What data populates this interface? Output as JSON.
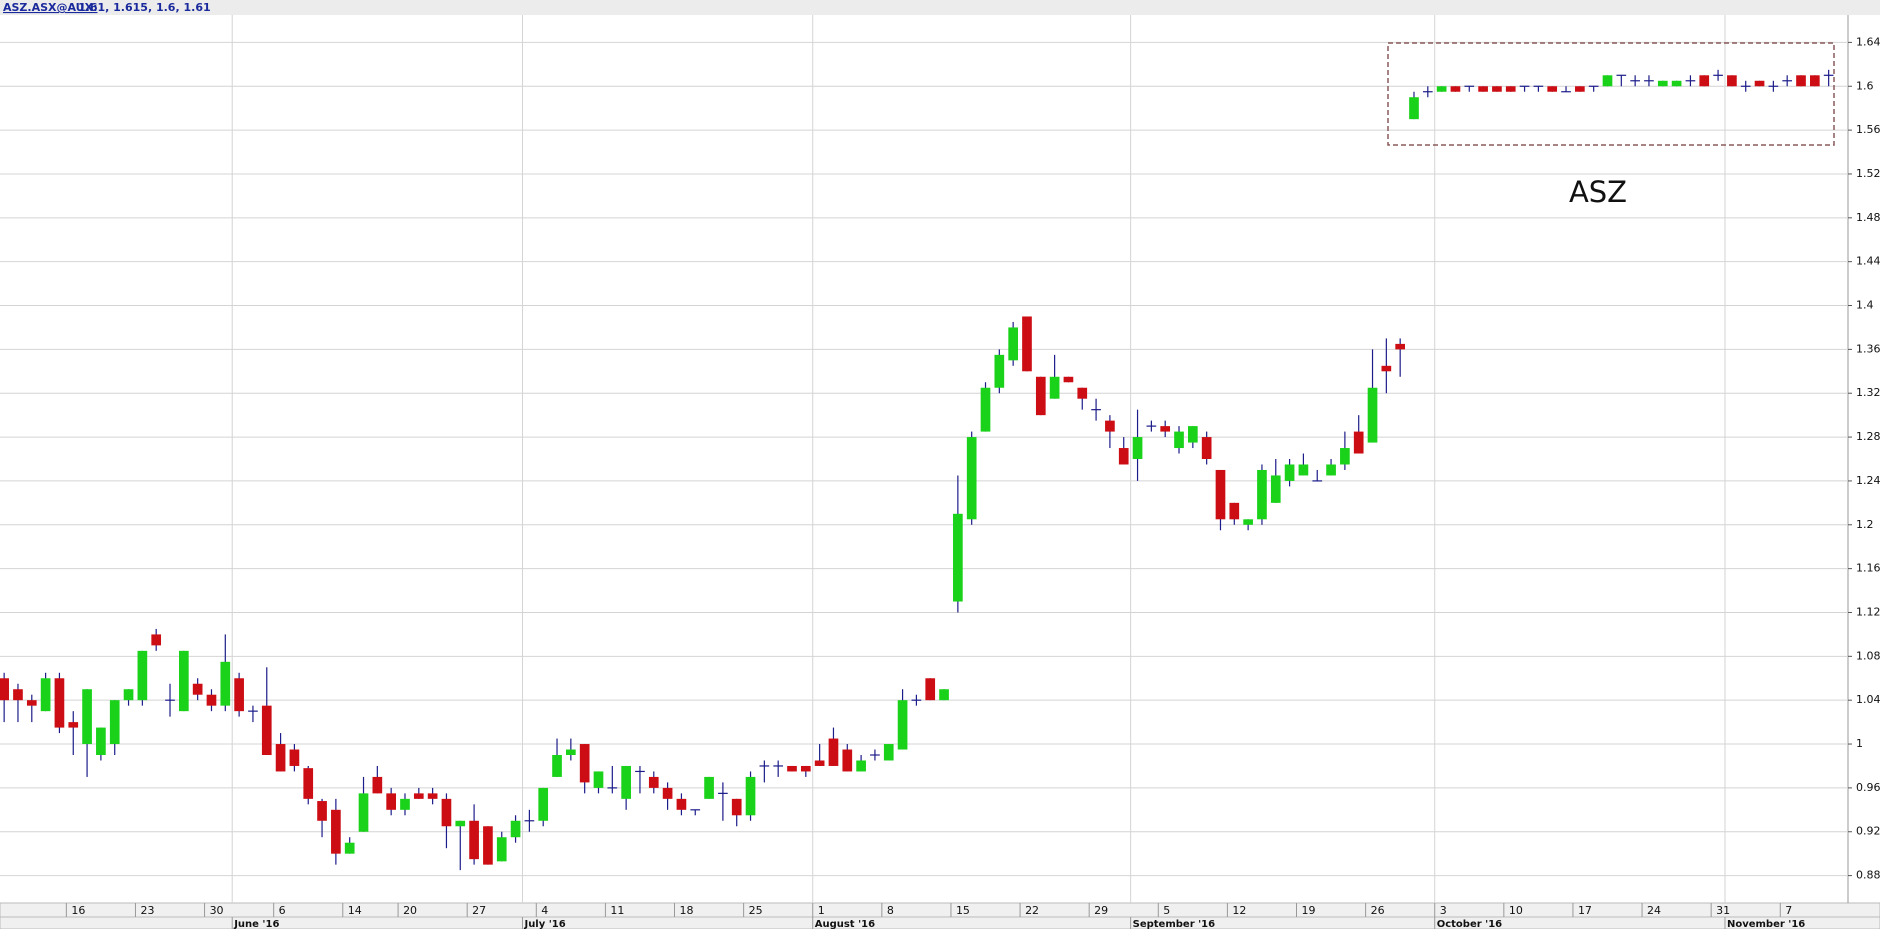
{
  "chart_data": {
    "type": "candlestick",
    "legend_label": "ASZ.ASX@AUX:",
    "annotation": "ASZ",
    "up_color": "#19d219",
    "down_color": "#cc0d14",
    "wick_color": "#1c1c8a",
    "grid": true,
    "ylim": [
      0.855,
      1.665
    ],
    "yticks": [
      0.88,
      0.92,
      0.96,
      1,
      1.04,
      1.08,
      1.12,
      1.16,
      1.2,
      1.24,
      1.28,
      1.32,
      1.36,
      1.4,
      1.44,
      1.48,
      1.52,
      1.56,
      1.6,
      1.64
    ],
    "xticks": [
      {
        "value": "2016-05-16",
        "label": "16"
      },
      {
        "value": "2016-05-23",
        "label": "23"
      },
      {
        "value": "2016-05-30",
        "label": "30"
      },
      {
        "value": "2016-06-06",
        "label": "6"
      },
      {
        "value": "2016-06-14",
        "label": "14"
      },
      {
        "value": "2016-06-20",
        "label": "20"
      },
      {
        "value": "2016-06-27",
        "label": "27"
      },
      {
        "value": "2016-07-04",
        "label": "4"
      },
      {
        "value": "2016-07-11",
        "label": "11"
      },
      {
        "value": "2016-07-18",
        "label": "18"
      },
      {
        "value": "2016-07-25",
        "label": "25"
      },
      {
        "value": "2016-08-01",
        "label": "1"
      },
      {
        "value": "2016-08-08",
        "label": "8"
      },
      {
        "value": "2016-08-15",
        "label": "15"
      },
      {
        "value": "2016-08-22",
        "label": "22"
      },
      {
        "value": "2016-08-29",
        "label": "29"
      },
      {
        "value": "2016-09-05",
        "label": "5"
      },
      {
        "value": "2016-09-12",
        "label": "12"
      },
      {
        "value": "2016-09-19",
        "label": "19"
      },
      {
        "value": "2016-09-26",
        "label": "26"
      },
      {
        "value": "2016-10-03",
        "label": "3"
      },
      {
        "value": "2016-10-10",
        "label": "10"
      },
      {
        "value": "2016-10-17",
        "label": "17"
      },
      {
        "value": "2016-10-24",
        "label": "24"
      },
      {
        "value": "2016-10-31",
        "label": "31"
      },
      {
        "value": "2016-11-07",
        "label": "7"
      }
    ],
    "month_ticks": [
      {
        "value": "2016-06-01",
        "label": "June '16"
      },
      {
        "value": "2016-07-01",
        "label": "July '16"
      },
      {
        "value": "2016-08-01",
        "label": "August '16"
      },
      {
        "value": "2016-09-01",
        "label": "September '16"
      },
      {
        "value": "2016-10-03",
        "label": "October '16"
      },
      {
        "value": "2016-11-01",
        "label": "November '16"
      }
    ],
    "x": [
      "2016-05-09",
      "2016-05-10",
      "2016-05-11",
      "2016-05-12",
      "2016-05-13",
      "2016-05-16",
      "2016-05-17",
      "2016-05-18",
      "2016-05-19",
      "2016-05-20",
      "2016-05-23",
      "2016-05-24",
      "2016-05-25",
      "2016-05-26",
      "2016-05-27",
      "2016-05-30",
      "2016-05-31",
      "2016-06-01",
      "2016-06-02",
      "2016-06-03",
      "2016-06-06",
      "2016-06-07",
      "2016-06-08",
      "2016-06-09",
      "2016-06-10",
      "2016-06-14",
      "2016-06-15",
      "2016-06-16",
      "2016-06-17",
      "2016-06-20",
      "2016-06-21",
      "2016-06-22",
      "2016-06-23",
      "2016-06-24",
      "2016-06-27",
      "2016-06-28",
      "2016-06-29",
      "2016-06-30",
      "2016-07-01",
      "2016-07-04",
      "2016-07-05",
      "2016-07-06",
      "2016-07-07",
      "2016-07-08",
      "2016-07-11",
      "2016-07-12",
      "2016-07-13",
      "2016-07-14",
      "2016-07-15",
      "2016-07-18",
      "2016-07-19",
      "2016-07-20",
      "2016-07-21",
      "2016-07-22",
      "2016-07-25",
      "2016-07-26",
      "2016-07-27",
      "2016-07-28",
      "2016-07-29",
      "2016-08-01",
      "2016-08-02",
      "2016-08-03",
      "2016-08-04",
      "2016-08-05",
      "2016-08-08",
      "2016-08-09",
      "2016-08-10",
      "2016-08-11",
      "2016-08-12",
      "2016-08-15",
      "2016-08-16",
      "2016-08-17",
      "2016-08-18",
      "2016-08-19",
      "2016-08-22",
      "2016-08-23",
      "2016-08-24",
      "2016-08-25",
      "2016-08-26",
      "2016-08-29",
      "2016-08-30",
      "2016-08-31",
      "2016-09-01",
      "2016-09-02",
      "2016-09-05",
      "2016-09-06",
      "2016-09-07",
      "2016-09-08",
      "2016-09-09",
      "2016-09-12",
      "2016-09-13",
      "2016-09-14",
      "2016-09-15",
      "2016-09-16",
      "2016-09-19",
      "2016-09-20",
      "2016-09-21",
      "2016-09-22",
      "2016-09-23",
      "2016-09-26",
      "2016-09-27",
      "2016-09-28",
      "2016-09-29",
      "2016-09-30",
      "2016-10-03",
      "2016-10-04",
      "2016-10-05",
      "2016-10-06",
      "2016-10-07",
      "2016-10-10",
      "2016-10-11",
      "2016-10-12",
      "2016-10-13",
      "2016-10-14",
      "2016-10-17",
      "2016-10-18",
      "2016-10-19",
      "2016-10-20",
      "2016-10-21",
      "2016-10-24",
      "2016-10-25",
      "2016-10-26",
      "2016-10-27",
      "2016-10-28",
      "2016-10-31",
      "2016-11-01",
      "2016-11-02",
      "2016-11-03",
      "2016-11-04",
      "2016-11-07",
      "2016-11-08",
      "2016-11-09",
      "2016-11-10"
    ],
    "open": [
      1.06,
      1.05,
      1.04,
      1.03,
      1.06,
      1.02,
      1.0,
      0.99,
      1.0,
      1.04,
      1.04,
      1.1,
      1.04,
      1.03,
      1.055,
      1.045,
      1.035,
      1.06,
      1.03,
      1.035,
      1.0,
      0.995,
      0.978,
      0.948,
      0.94,
      0.9,
      0.92,
      0.97,
      0.955,
      0.94,
      0.955,
      0.955,
      0.95,
      0.925,
      0.93,
      0.925,
      0.893,
      0.915,
      0.93,
      0.93,
      0.97,
      0.99,
      1.0,
      0.96,
      0.96,
      0.95,
      0.975,
      0.97,
      0.96,
      0.95,
      0.94,
      0.95,
      0.955,
      0.95,
      0.935,
      0.98,
      0.98,
      0.98,
      0.98,
      0.985,
      1.005,
      0.995,
      0.975,
      0.99,
      0.985,
      0.995,
      1.04,
      1.06,
      1.04,
      1.13,
      1.205,
      1.285,
      1.325,
      1.35,
      1.39,
      1.335,
      1.315,
      1.335,
      1.325,
      1.305,
      1.295,
      1.27,
      1.26,
      1.29,
      1.29,
      1.27,
      1.275,
      1.28,
      1.25,
      1.22,
      1.2,
      1.205,
      1.22,
      1.24,
      1.245,
      1.24,
      1.245,
      1.255,
      1.285,
      1.275,
      1.345,
      1.365,
      1.57,
      1.595,
      1.595,
      1.6,
      1.6,
      1.6,
      1.6,
      1.6,
      1.6,
      1.6,
      1.6,
      1.595,
      1.6,
      1.6,
      1.6,
      1.61,
      1.605,
      1.605,
      1.6,
      1.6,
      1.605,
      1.61,
      1.61,
      1.61,
      1.6,
      1.605,
      1.6,
      1.605,
      1.61,
      1.61,
      1.61
    ],
    "high": [
      1.065,
      1.055,
      1.045,
      1.065,
      1.065,
      1.03,
      1.05,
      1.015,
      1.04,
      1.05,
      1.085,
      1.105,
      1.055,
      1.085,
      1.06,
      1.05,
      1.1,
      1.065,
      1.035,
      1.07,
      1.01,
      1.0,
      0.98,
      0.95,
      0.95,
      0.915,
      0.97,
      0.98,
      0.96,
      0.955,
      0.96,
      0.96,
      0.955,
      0.93,
      0.945,
      0.925,
      0.92,
      0.935,
      0.94,
      0.96,
      1.005,
      1.005,
      1.0,
      0.975,
      0.98,
      0.98,
      0.98,
      0.975,
      0.965,
      0.955,
      0.94,
      0.97,
      0.965,
      0.95,
      0.975,
      0.985,
      0.985,
      0.98,
      0.98,
      1.0,
      1.015,
      1.0,
      0.99,
      0.995,
      1.0,
      1.05,
      1.045,
      1.06,
      1.05,
      1.245,
      1.285,
      1.33,
      1.36,
      1.385,
      1.39,
      1.335,
      1.355,
      1.335,
      1.325,
      1.315,
      1.3,
      1.28,
      1.305,
      1.295,
      1.295,
      1.29,
      1.29,
      1.285,
      1.25,
      1.22,
      1.205,
      1.255,
      1.26,
      1.26,
      1.265,
      1.25,
      1.26,
      1.285,
      1.3,
      1.36,
      1.37,
      1.37,
      1.595,
      1.6,
      1.6,
      1.6,
      1.6,
      1.6,
      1.6,
      1.6,
      1.6,
      1.6,
      1.6,
      1.6,
      1.6,
      1.6,
      1.61,
      1.61,
      1.61,
      1.61,
      1.605,
      1.605,
      1.61,
      1.61,
      1.615,
      1.61,
      1.605,
      1.605,
      1.605,
      1.61,
      1.61,
      1.61,
      1.615
    ],
    "low": [
      1.02,
      1.02,
      1.02,
      1.03,
      1.01,
      0.99,
      0.97,
      0.985,
      0.99,
      1.035,
      1.035,
      1.085,
      1.025,
      1.03,
      1.04,
      1.03,
      1.03,
      1.025,
      1.02,
      0.99,
      0.975,
      0.975,
      0.945,
      0.915,
      0.89,
      0.9,
      0.92,
      0.955,
      0.935,
      0.935,
      0.95,
      0.945,
      0.905,
      0.885,
      0.89,
      0.89,
      0.893,
      0.91,
      0.92,
      0.925,
      0.97,
      0.985,
      0.955,
      0.955,
      0.955,
      0.94,
      0.955,
      0.955,
      0.94,
      0.935,
      0.935,
      0.95,
      0.93,
      0.925,
      0.93,
      0.965,
      0.97,
      0.975,
      0.97,
      0.98,
      0.98,
      0.975,
      0.975,
      0.985,
      0.985,
      0.995,
      1.035,
      1.04,
      1.04,
      1.12,
      1.2,
      1.285,
      1.32,
      1.345,
      1.34,
      1.3,
      1.315,
      1.33,
      1.305,
      1.295,
      1.27,
      1.255,
      1.24,
      1.285,
      1.28,
      1.265,
      1.27,
      1.255,
      1.195,
      1.2,
      1.195,
      1.2,
      1.22,
      1.235,
      1.245,
      1.24,
      1.245,
      1.25,
      1.265,
      1.275,
      1.32,
      1.335,
      1.57,
      1.59,
      1.595,
      1.595,
      1.595,
      1.595,
      1.595,
      1.595,
      1.595,
      1.595,
      1.595,
      1.595,
      1.595,
      1.595,
      1.6,
      1.6,
      1.6,
      1.6,
      1.6,
      1.6,
      1.6,
      1.6,
      1.605,
      1.6,
      1.595,
      1.6,
      1.595,
      1.6,
      1.6,
      1.6,
      1.6
    ],
    "close": [
      1.04,
      1.04,
      1.035,
      1.06,
      1.015,
      1.015,
      1.05,
      1.015,
      1.04,
      1.05,
      1.085,
      1.09,
      1.04,
      1.085,
      1.045,
      1.035,
      1.075,
      1.03,
      1.03,
      0.99,
      0.975,
      0.98,
      0.95,
      0.93,
      0.9,
      0.91,
      0.955,
      0.955,
      0.94,
      0.95,
      0.95,
      0.95,
      0.925,
      0.93,
      0.895,
      0.89,
      0.915,
      0.93,
      0.93,
      0.96,
      0.99,
      0.995,
      0.965,
      0.975,
      0.96,
      0.98,
      0.975,
      0.96,
      0.95,
      0.94,
      0.94,
      0.97,
      0.955,
      0.935,
      0.97,
      0.98,
      0.98,
      0.975,
      0.975,
      0.98,
      0.98,
      0.975,
      0.985,
      0.99,
      1.0,
      1.04,
      1.04,
      1.04,
      1.05,
      1.21,
      1.28,
      1.325,
      1.355,
      1.38,
      1.34,
      1.3,
      1.335,
      1.33,
      1.315,
      1.305,
      1.285,
      1.255,
      1.28,
      1.29,
      1.285,
      1.285,
      1.29,
      1.26,
      1.205,
      1.205,
      1.205,
      1.25,
      1.245,
      1.255,
      1.255,
      1.24,
      1.255,
      1.27,
      1.265,
      1.325,
      1.34,
      1.36,
      1.59,
      1.595,
      1.6,
      1.595,
      1.6,
      1.595,
      1.595,
      1.595,
      1.6,
      1.6,
      1.595,
      1.595,
      1.595,
      1.6,
      1.61,
      1.61,
      1.605,
      1.605,
      1.605,
      1.605,
      1.605,
      1.6,
      1.61,
      1.6,
      1.6,
      1.6,
      1.6,
      1.605,
      1.6,
      1.6,
      1.61
    ]
  }
}
